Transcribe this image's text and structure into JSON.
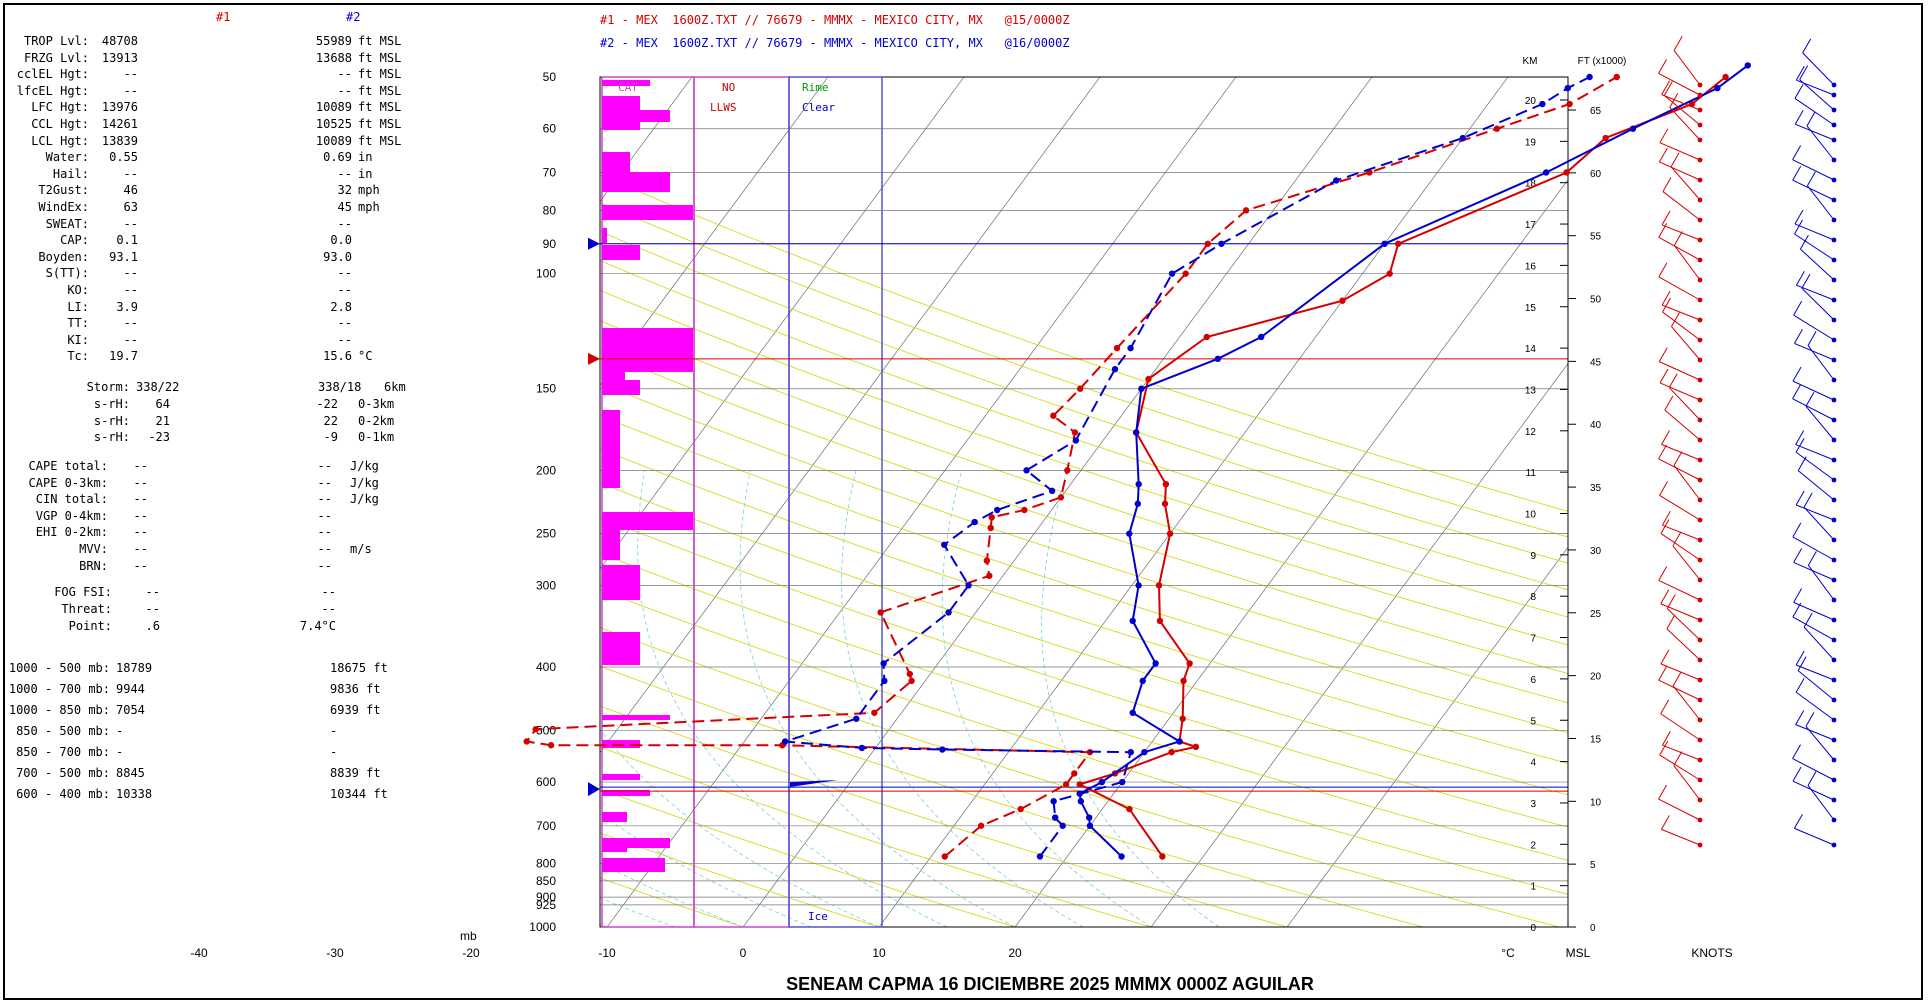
{
  "legend": {
    "line1": "#1 - MEX  1600Z.TXT // 76679 - MMMX - MEXICO CITY, MX   @15/0000Z",
    "line2": "#2 - MEX  1600Z.TXT // 76679 - MMMX - MEXICO CITY, MX   @16/0000Z",
    "color1": "#d40000",
    "color2": "#0000cc"
  },
  "panel": {
    "hdr1": "#1",
    "hdr2": "#2",
    "rows": [
      {
        "label": "TROP Lvl:",
        "v1": "48708",
        "v2": "55989",
        "unit": "ft MSL"
      },
      {
        "label": "FRZG Lvl:",
        "v1": "13913",
        "v2": "13688",
        "unit": "ft MSL"
      },
      {
        "label": "cclEL Hgt:",
        "v1": "--",
        "v2": "--",
        "unit": "ft MSL"
      },
      {
        "label": "lfcEL Hgt:",
        "v1": "--",
        "v2": "--",
        "unit": "ft MSL"
      },
      {
        "label": "LFC Hgt:",
        "v1": "13976",
        "v2": "10089",
        "unit": "ft MSL"
      },
      {
        "label": "CCL Hgt:",
        "v1": "14261",
        "v2": "10525",
        "unit": "ft MSL"
      },
      {
        "label": "LCL Hgt:",
        "v1": "13839",
        "v2": "10089",
        "unit": "ft MSL"
      },
      {
        "label": "Water:",
        "v1": "0.55",
        "v2": "0.69",
        "unit": "in"
      },
      {
        "label": "Hail:",
        "v1": "--",
        "v2": "--",
        "unit": "in"
      },
      {
        "label": "T2Gust:",
        "v1": "46",
        "v2": "32",
        "unit": "mph"
      },
      {
        "label": "WindEx:",
        "v1": "63",
        "v2": "45",
        "unit": "mph"
      },
      {
        "label": "SWEAT:",
        "v1": "--",
        "v2": "--",
        "unit": ""
      },
      {
        "label": "CAP:",
        "v1": "0.1",
        "v2": "0.0",
        "unit": ""
      },
      {
        "label": "Boyden:",
        "v1": "93.1",
        "v2": "93.0",
        "unit": ""
      },
      {
        "label": "S(TT):",
        "v1": "--",
        "v2": "--",
        "unit": ""
      },
      {
        "label": "KO:",
        "v1": "--",
        "v2": "--",
        "unit": ""
      },
      {
        "label": "LI:",
        "v1": "3.9",
        "v2": "2.8",
        "unit": ""
      },
      {
        "label": "TT:",
        "v1": "--",
        "v2": "--",
        "unit": ""
      },
      {
        "label": "KI:",
        "v1": "--",
        "v2": "--",
        "unit": ""
      },
      {
        "label": "Tc:",
        "v1": "19.7",
        "v2": "15.6",
        "unit": "°C"
      }
    ],
    "storm_label": "Storm:",
    "storm_v1": "338/22",
    "storm_v2": "338/18",
    "storm_unit": "6km",
    "srh": [
      {
        "label": "s-rH:",
        "v1": "64",
        "v2": "-22",
        "unit": "0-3km"
      },
      {
        "label": "s-rH:",
        "v1": "21",
        "v2": "22",
        "unit": "0-2km"
      },
      {
        "label": "s-rH:",
        "v1": "-23",
        "v2": "-9",
        "unit": "0-1km"
      }
    ],
    "cape": [
      {
        "label": "CAPE total:",
        "v1": "--",
        "v2": "--",
        "unit": "J/kg"
      },
      {
        "label": "CAPE 0-3km:",
        "v1": "--",
        "v2": "--",
        "unit": "J/kg"
      },
      {
        "label": "CIN total:",
        "v1": "--",
        "v2": "--",
        "unit": "J/kg"
      },
      {
        "label": "VGP 0-4km:",
        "v1": "--",
        "v2": "--",
        "unit": ""
      },
      {
        "label": "EHI 0-2km:",
        "v1": "--",
        "v2": "--",
        "unit": ""
      },
      {
        "label": "MVV:",
        "v1": "--",
        "v2": "--",
        "unit": "m/s"
      },
      {
        "label": "BRN:",
        "v1": "--",
        "v2": "--",
        "unit": ""
      }
    ],
    "fog": [
      {
        "label": "FOG FSI:",
        "v1": "--",
        "v2": "--",
        "unit": ""
      },
      {
        "label": "Threat:",
        "v1": "--",
        "v2": "--",
        "unit": ""
      },
      {
        "label": "Point:",
        "v1": ".6",
        "v2": "7.4°C",
        "unit": ""
      }
    ],
    "thick": [
      {
        "label": "1000 - 500 mb:",
        "v1": "18789",
        "v2": "18675 ft"
      },
      {
        "label": "1000 - 700 mb:",
        "v1": "9944",
        "v2": "9836 ft"
      },
      {
        "label": "1000 - 850 mb:",
        "v1": "7054",
        "v2": "6939 ft"
      },
      {
        "label": "850 - 500 mb:",
        "v1": "-",
        "v2": "-"
      },
      {
        "label": "850 - 700 mb:",
        "v1": "-",
        "v2": "-"
      },
      {
        "label": "700 - 500 mb:",
        "v1": "8845",
        "v2": "8839 ft"
      },
      {
        "label": "600 - 400 mb:",
        "v1": "10338",
        "v2": "10344 ft"
      }
    ]
  },
  "chart_data": {
    "type": "line",
    "title": "SENEAM CAPMA  16 DICIEMBRE 2025  MMMX  0000Z  AGUILAR",
    "xlabel": "°C",
    "ylabel": "mb",
    "xlim": [
      -40,
      25
    ],
    "ylim": [
      1000,
      50
    ],
    "x_ticks": [
      "-40",
      "-30",
      "-20",
      "-10",
      "0",
      "10",
      "20"
    ],
    "p_ticks": [
      "50",
      "60",
      "70",
      "80",
      "90",
      "100",
      "150",
      "200",
      "250",
      "300",
      "400",
      "500",
      "600",
      "700",
      "800",
      "850",
      "900",
      "925",
      "1000"
    ],
    "km_label": "KM",
    "ft_label": "FT (x1000)",
    "msl_label": "MSL",
    "knots_label": "KNOTS",
    "km_ticks": [
      "0",
      "1",
      "2",
      "3",
      "4",
      "5",
      "6",
      "7",
      "8",
      "9",
      "10",
      "11",
      "12",
      "13",
      "14",
      "15",
      "16",
      "17",
      "18",
      "19",
      "20"
    ],
    "ft_ticks": [
      "0",
      "5",
      "10",
      "15",
      "20",
      "25",
      "30",
      "35",
      "40",
      "45",
      "50",
      "55",
      "60",
      "65"
    ],
    "boxes": {
      "cat": "CAT",
      "no": "NO",
      "llws": "LLWS",
      "rime": "Rime",
      "clear": "Clear",
      "ice": "Ice"
    },
    "colors": {
      "s1": "#d40000",
      "s2": "#0000cc",
      "isotherm": "#bdbd00",
      "dry": "#d4d400",
      "moist": "#66cccc",
      "grid": "#000000",
      "cat": "#ff00ff"
    },
    "series": [
      {
        "name": "#1",
        "temperature": [
          [
            780,
            27
          ],
          [
            660,
            22
          ],
          [
            605,
            17
          ],
          [
            582,
            19
          ],
          [
            540,
            22
          ],
          [
            530,
            23.5
          ],
          [
            520,
            22
          ],
          [
            480,
            21
          ],
          [
            420,
            19
          ],
          [
            395,
            18.5
          ],
          [
            340,
            14
          ],
          [
            300,
            12
          ],
          [
            250,
            10
          ],
          [
            225,
            8
          ],
          [
            210,
            7
          ],
          [
            175,
            2
          ],
          [
            145,
            0
          ],
          [
            125,
            2
          ],
          [
            110,
            10
          ],
          [
            100,
            12
          ],
          [
            90,
            11
          ],
          [
            70,
            19.5
          ],
          [
            62,
            20.5
          ],
          [
            55,
            25
          ],
          [
            50,
            26
          ]
        ],
        "dewpoint": [
          [
            780,
            11
          ],
          [
            700,
            12
          ],
          [
            660,
            14
          ],
          [
            605,
            16
          ],
          [
            582,
            16
          ],
          [
            540,
            16
          ],
          [
            527,
            -7
          ],
          [
            527,
            -24
          ],
          [
            520,
            -26
          ],
          [
            498,
            -26
          ],
          [
            470,
            -2
          ],
          [
            420,
            -1
          ],
          [
            410,
            -1.5
          ],
          [
            330,
            -7
          ],
          [
            290,
            -1
          ],
          [
            275,
            -2
          ],
          [
            245,
            -3.5
          ],
          [
            236,
            -4
          ],
          [
            230,
            -2
          ],
          [
            220,
            0
          ],
          [
            200,
            -1
          ],
          [
            175,
            -2.5
          ],
          [
            165,
            -5
          ],
          [
            150,
            -4.5
          ],
          [
            130,
            -4
          ],
          [
            100,
            -3
          ],
          [
            90,
            -3
          ],
          [
            80,
            -2
          ],
          [
            70,
            5
          ],
          [
            60,
            12
          ],
          [
            55,
            16
          ],
          [
            50,
            18
          ]
        ]
      },
      {
        "name": "#2",
        "temperature": [
          [
            780,
            24
          ],
          [
            700,
            20
          ],
          [
            680,
            19.5
          ],
          [
            642,
            18
          ],
          [
            625,
            17.5
          ],
          [
            600,
            18.5
          ],
          [
            540,
            20
          ],
          [
            520,
            22
          ],
          [
            470,
            17
          ],
          [
            420,
            16
          ],
          [
            395,
            16
          ],
          [
            340,
            12
          ],
          [
            300,
            10.5
          ],
          [
            250,
            7
          ],
          [
            225,
            6
          ],
          [
            210,
            5
          ],
          [
            175,
            2
          ],
          [
            150,
            0
          ],
          [
            135,
            4
          ],
          [
            125,
            6
          ],
          [
            90,
            10
          ],
          [
            70,
            18
          ],
          [
            60,
            22
          ],
          [
            52,
            26
          ],
          [
            48,
            27
          ]
        ],
        "dewpoint": [
          [
            780,
            18
          ],
          [
            700,
            18
          ],
          [
            680,
            17
          ],
          [
            642,
            16
          ],
          [
            600,
            20
          ],
          [
            540,
            19
          ],
          [
            535,
            5
          ],
          [
            532,
            -1
          ],
          [
            520,
            -7
          ],
          [
            480,
            -3
          ],
          [
            420,
            -3
          ],
          [
            395,
            -4
          ],
          [
            330,
            -2
          ],
          [
            300,
            -2
          ],
          [
            260,
            -6
          ],
          [
            240,
            -5
          ],
          [
            230,
            -4
          ],
          [
            215,
            -1
          ],
          [
            200,
            -4
          ],
          [
            180,
            -2
          ],
          [
            140,
            -3
          ],
          [
            130,
            -3
          ],
          [
            100,
            -4
          ],
          [
            90,
            -2
          ],
          [
            72,
            3
          ],
          [
            62,
            10
          ],
          [
            55,
            14
          ],
          [
            52,
            15
          ],
          [
            50,
            16
          ]
        ]
      }
    ],
    "markers": {
      "trop1_p": 135,
      "trop2_p": 90,
      "frz_p": 615
    }
  }
}
